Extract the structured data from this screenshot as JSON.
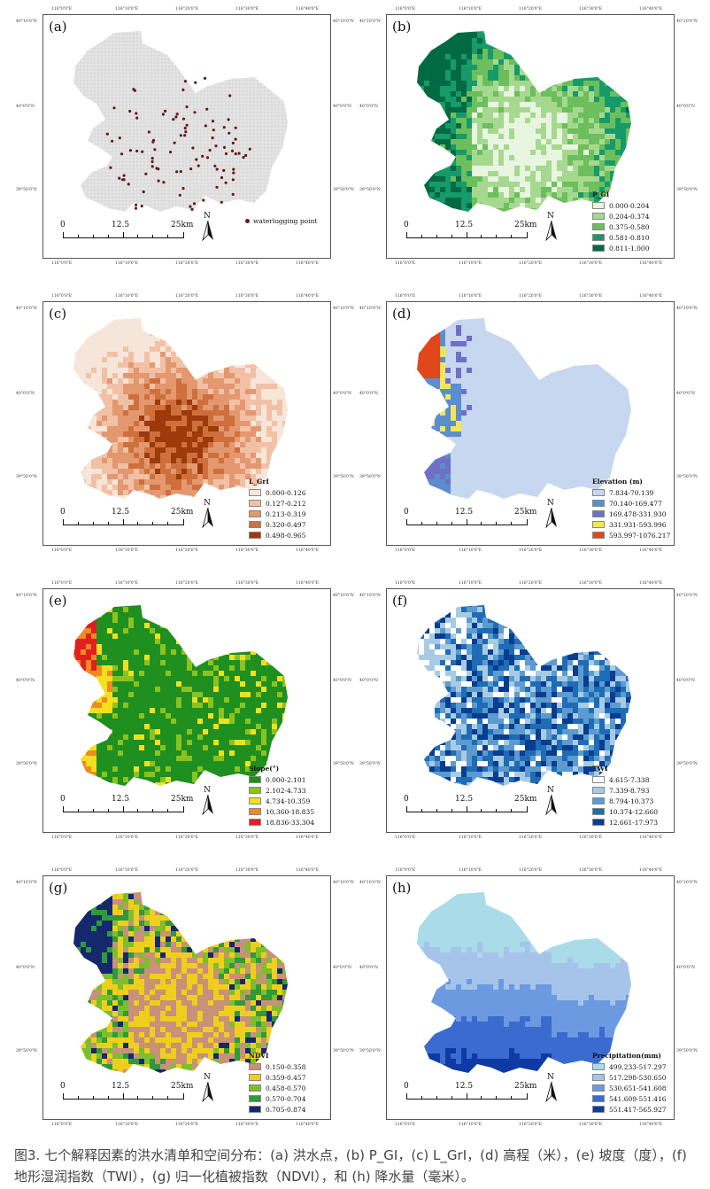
{
  "coords": {
    "top": [
      "116°0'0\"E",
      "116°10'0\"E",
      "116°20'0\"E",
      "116°30'0\"E",
      "116°40'0\"E"
    ],
    "right": [
      "40°10'0\"N",
      "40°0'0\"N",
      "39°50'0\"N"
    ],
    "left": [
      "40°10'0\"N",
      "40°0'0\"N",
      "39°50'0\"N"
    ]
  },
  "scalebar": {
    "zero": "0",
    "mid": "12.5",
    "end": "25km",
    "north": "N"
  },
  "panels": [
    {
      "label": "(a)",
      "legend_title": "",
      "point_label": "waterlogging point",
      "point_color": "#6b1a1a",
      "palette": [
        "#e6e6e6"
      ],
      "entries": []
    },
    {
      "label": "(b)",
      "legend_title": "P_GI",
      "palette": [
        "#e8f5e0",
        "#a6d98f",
        "#6cbf5c",
        "#179a6a",
        "#006a45"
      ],
      "entries": [
        "0.000-0.204",
        "0.204-0.374",
        "0.375-0.580",
        "0.581-0.810",
        "0.811-1.000"
      ]
    },
    {
      "label": "(c)",
      "legend_title": "L_GrI",
      "palette": [
        "#f6e6d9",
        "#f2c1a5",
        "#e39870",
        "#cf6f3c",
        "#9c3a0c"
      ],
      "entries": [
        "0.000-0.126",
        "0.127-0.212",
        "0.213-0.319",
        "0.320-0.497",
        "0.498-0.965"
      ]
    },
    {
      "label": "(d)",
      "legend_title": "Elevation (m)",
      "palette": [
        "#c6d7ef",
        "#5b8ecf",
        "#6f6fc6",
        "#f5e55a",
        "#e2461b"
      ],
      "entries": [
        "7.834-70.139",
        "70.140-169.477",
        "169.478-331.930",
        "331.931-593.996",
        "593.997-1076.217"
      ]
    },
    {
      "label": "(e)",
      "legend_title": "Slope(°)",
      "palette": [
        "#1f8f1f",
        "#8cc21f",
        "#f2e01f",
        "#f28a1f",
        "#e02020"
      ],
      "entries": [
        "0.000-2.101",
        "2.102-4.733",
        "4.734-10.359",
        "10.360-18.835",
        "18.836-33.304"
      ]
    },
    {
      "label": "(f)",
      "legend_title": "TWI",
      "palette": [
        "#ffffff",
        "#a8cbe4",
        "#5b9bd0",
        "#1e6cb5",
        "#0a3c8f"
      ],
      "entries": [
        "4.615-7.338",
        "7.339-8.793",
        "8.794-10.373",
        "10.374-12.660",
        "12.661-17.973"
      ]
    },
    {
      "label": "(g)",
      "legend_title": "NDVI",
      "palette": [
        "#c9907a",
        "#f0cf1c",
        "#7cbf2e",
        "#2f9a3a",
        "#15286e"
      ],
      "entries": [
        "0.150-0.358",
        "0.359-0.457",
        "0.458-0.570",
        "0.570-0.704",
        "0.705-0.874"
      ]
    },
    {
      "label": "(h)",
      "legend_title": "Precipitation(mm)",
      "palette": [
        "#a9dbe8",
        "#a6c4ea",
        "#6b9ae0",
        "#3b6bd0",
        "#0e3aa5"
      ],
      "entries": [
        "499.233-517.297",
        "517.298-530.650",
        "530.651-541.608",
        "541.609-551.416",
        "551.417-565.927"
      ]
    }
  ],
  "caption": "图3. 七个解释因素的洪水清单和空间分布：(a) 洪水点，(b) P_GI，(c) L_GrI，(d) 高程（米），(e) 坡度（度），(f) 地形湿润指数（TWI），(g) 归一化植被指数（NDVI），和 (h) 降水量（毫米）。"
}
